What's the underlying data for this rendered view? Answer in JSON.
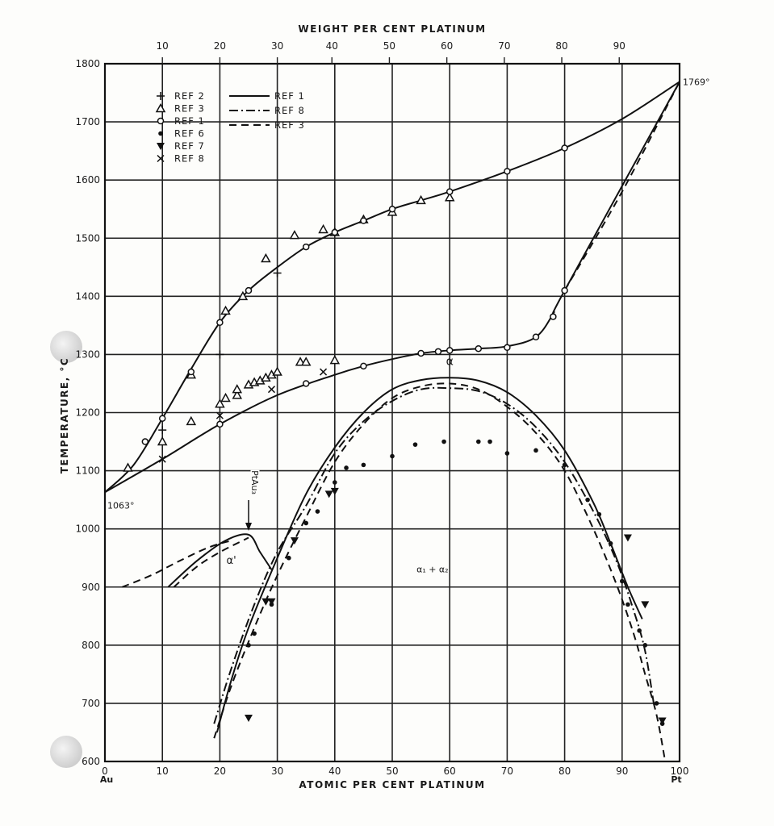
{
  "chart_data": {
    "type": "line",
    "title": "WEIGHT PER CENT PLATINUM",
    "xlabel": "ATOMIC PER CENT PLATINUM",
    "ylabel": "TEMPERATURE, °C",
    "xlim": [
      0,
      100
    ],
    "ylim": [
      600,
      1800
    ],
    "grid": true,
    "legend_position": "top-left",
    "x_ticks": [
      "0",
      "10",
      "20",
      "30",
      "40",
      "50",
      "60",
      "70",
      "80",
      "90",
      "100"
    ],
    "x_end_labels": {
      "left": "Au",
      "right": "Pt"
    },
    "y_ticks": [
      "600",
      "700",
      "800",
      "900",
      "1000",
      "1100",
      "1200",
      "1300",
      "1400",
      "1500",
      "1600",
      "1700",
      "1800"
    ],
    "top_axis": {
      "ticks": [
        "10",
        "20",
        "30",
        "40",
        "50",
        "60",
        "70",
        "80",
        "90"
      ],
      "atomic_positions": [
        10.0,
        20.0,
        30.0,
        39.5,
        49.5,
        59.5,
        69.5,
        79.5,
        89.5
      ]
    },
    "legend": {
      "markers": [
        {
          "symbol": "+",
          "label": "REF 2"
        },
        {
          "symbol": "△",
          "label": "REF 3"
        },
        {
          "symbol": "○",
          "label": "REF 1"
        },
        {
          "symbol": "•",
          "label": "REF 6"
        },
        {
          "symbol": "▼",
          "label": "REF 7"
        },
        {
          "symbol": "×",
          "label": "REF 8"
        }
      ],
      "lines": [
        {
          "style": "solid",
          "label": "REF 1"
        },
        {
          "style": "dash-dot",
          "label": "REF 8"
        },
        {
          "style": "dashed",
          "label": "REF 3"
        }
      ]
    },
    "annotations": [
      {
        "text": "1769°",
        "x": 100,
        "y": 1769
      },
      {
        "text": "1063°",
        "x": 0,
        "y": 1063
      },
      {
        "text": "PtAu₃",
        "x": 25,
        "y": 1080
      },
      {
        "text": "α",
        "x": 60,
        "y": 1282
      },
      {
        "text": "α'",
        "x": 22,
        "y": 940
      },
      {
        "text": "α₁ + α₂",
        "x": 57,
        "y": 925
      }
    ],
    "curves": [
      {
        "name": "liquidus",
        "style": "solid",
        "points": [
          [
            0,
            1063
          ],
          [
            5,
            1110
          ],
          [
            10,
            1190
          ],
          [
            15,
            1275
          ],
          [
            20,
            1355
          ],
          [
            25,
            1410
          ],
          [
            30,
            1450
          ],
          [
            35,
            1485
          ],
          [
            40,
            1510
          ],
          [
            45,
            1530
          ],
          [
            50,
            1550
          ],
          [
            55,
            1565
          ],
          [
            60,
            1580
          ],
          [
            70,
            1615
          ],
          [
            80,
            1655
          ],
          [
            90,
            1705
          ],
          [
            100,
            1769
          ]
        ]
      },
      {
        "name": "solidus",
        "style": "solid",
        "points": [
          [
            0,
            1063
          ],
          [
            10,
            1120
          ],
          [
            20,
            1180
          ],
          [
            30,
            1230
          ],
          [
            40,
            1265
          ],
          [
            45,
            1280
          ],
          [
            50,
            1292
          ],
          [
            55,
            1302
          ],
          [
            60,
            1307
          ],
          [
            65,
            1310
          ],
          [
            70,
            1314
          ],
          [
            75,
            1330
          ],
          [
            78,
            1370
          ],
          [
            80,
            1410
          ],
          [
            100,
            1769
          ]
        ]
      },
      {
        "name": "solidus-high-pt",
        "style": "dashed",
        "points": [
          [
            80,
            1410
          ],
          [
            90,
            1580
          ],
          [
            100,
            1769
          ]
        ]
      },
      {
        "name": "miscibility-gap-ref1",
        "style": "solid",
        "points": [
          [
            19.5,
            650
          ],
          [
            22,
            740
          ],
          [
            25,
            830
          ],
          [
            30,
            950
          ],
          [
            35,
            1060
          ],
          [
            40,
            1140
          ],
          [
            45,
            1200
          ],
          [
            50,
            1240
          ],
          [
            55,
            1256
          ],
          [
            60,
            1260
          ],
          [
            65,
            1255
          ],
          [
            70,
            1235
          ],
          [
            75,
            1195
          ],
          [
            80,
            1135
          ],
          [
            85,
            1045
          ],
          [
            88,
            975
          ],
          [
            91,
            900
          ],
          [
            93.5,
            845
          ]
        ]
      },
      {
        "name": "miscibility-gap-ref8",
        "style": "dash-dot",
        "points": [
          [
            19,
            665
          ],
          [
            22,
            760
          ],
          [
            26,
            870
          ],
          [
            30,
            960
          ],
          [
            35,
            1040
          ],
          [
            40,
            1130
          ],
          [
            45,
            1185
          ],
          [
            50,
            1220
          ],
          [
            55,
            1240
          ],
          [
            60,
            1242
          ],
          [
            65,
            1237
          ],
          [
            70,
            1215
          ],
          [
            75,
            1175
          ],
          [
            80,
            1115
          ],
          [
            85,
            1030
          ],
          [
            89,
            945
          ],
          [
            92,
            860
          ],
          [
            94,
            790
          ],
          [
            95.5,
            700
          ]
        ]
      },
      {
        "name": "miscibility-gap-ref3",
        "style": "dashed",
        "points": [
          [
            19,
            640
          ],
          [
            22,
            730
          ],
          [
            26,
            830
          ],
          [
            30,
            920
          ],
          [
            35,
            1020
          ],
          [
            40,
            1115
          ],
          [
            45,
            1180
          ],
          [
            50,
            1225
          ],
          [
            55,
            1245
          ],
          [
            60,
            1250
          ],
          [
            65,
            1240
          ],
          [
            70,
            1210
          ],
          [
            75,
            1165
          ],
          [
            80,
            1100
          ],
          [
            85,
            1000
          ],
          [
            89,
            905
          ],
          [
            92,
            820
          ],
          [
            94,
            750
          ],
          [
            96,
            680
          ],
          [
            97.5,
            600
          ]
        ]
      },
      {
        "name": "alpha-prime-solid",
        "style": "solid",
        "points": [
          [
            11,
            900
          ],
          [
            16,
            945
          ],
          [
            21,
            980
          ],
          [
            25,
            990
          ],
          [
            27,
            960
          ],
          [
            29,
            930
          ]
        ]
      },
      {
        "name": "alpha-prime-dashed",
        "style": "dashed",
        "points": [
          [
            3,
            900
          ],
          [
            8,
            920
          ],
          [
            13,
            945
          ],
          [
            18,
            968
          ],
          [
            22,
            980
          ]
        ]
      },
      {
        "name": "alpha-prime-dashed-2",
        "style": "dashed",
        "points": [
          [
            12,
            900
          ],
          [
            16,
            935
          ],
          [
            20,
            960
          ],
          [
            24,
            980
          ],
          [
            25,
            985
          ]
        ]
      }
    ],
    "series": [
      {
        "name": "REF 2",
        "marker": "+",
        "points": [
          [
            10,
            1170
          ],
          [
            20,
            1300
          ],
          [
            30,
            1440
          ]
        ]
      },
      {
        "name": "REF 3",
        "marker": "triangle",
        "points": [
          [
            4,
            1105
          ],
          [
            10,
            1150
          ],
          [
            15,
            1185
          ],
          [
            15,
            1265
          ],
          [
            21,
            1375
          ],
          [
            24,
            1400
          ],
          [
            28,
            1465
          ],
          [
            33,
            1505
          ],
          [
            38,
            1515
          ],
          [
            40,
            1510
          ],
          [
            45,
            1532
          ],
          [
            50,
            1545
          ],
          [
            55,
            1565
          ],
          [
            60,
            1570
          ],
          [
            20,
            1215
          ],
          [
            21,
            1225
          ],
          [
            23,
            1230
          ],
          [
            23,
            1240
          ],
          [
            25,
            1248
          ],
          [
            26,
            1252
          ],
          [
            27,
            1255
          ],
          [
            28,
            1260
          ],
          [
            29,
            1265
          ],
          [
            30,
            1270
          ],
          [
            34,
            1287
          ],
          [
            35,
            1287
          ],
          [
            40,
            1290
          ]
        ]
      },
      {
        "name": "REF 1",
        "marker": "circle",
        "points": [
          [
            7,
            1150
          ],
          [
            10,
            1190
          ],
          [
            15,
            1270
          ],
          [
            20,
            1355
          ],
          [
            25,
            1410
          ],
          [
            35,
            1485
          ],
          [
            40,
            1510
          ],
          [
            45,
            1530
          ],
          [
            50,
            1550
          ],
          [
            60,
            1580
          ],
          [
            70,
            1615
          ],
          [
            80,
            1655
          ],
          [
            20,
            1180
          ],
          [
            35,
            1250
          ],
          [
            45,
            1280
          ],
          [
            55,
            1302
          ],
          [
            58,
            1305
          ],
          [
            60,
            1307
          ],
          [
            65,
            1310
          ],
          [
            70,
            1312
          ],
          [
            75,
            1330
          ],
          [
            78,
            1365
          ],
          [
            80,
            1410
          ]
        ]
      },
      {
        "name": "REF 6",
        "marker": "dot",
        "points": [
          [
            25,
            800
          ],
          [
            26,
            820
          ],
          [
            29,
            870
          ],
          [
            32,
            950
          ],
          [
            35,
            1010
          ],
          [
            37,
            1030
          ],
          [
            40,
            1080
          ],
          [
            42,
            1105
          ],
          [
            45,
            1110
          ],
          [
            50,
            1125
          ],
          [
            54,
            1145
          ],
          [
            59,
            1150
          ],
          [
            65,
            1150
          ],
          [
            75,
            1135
          ],
          [
            80,
            1110
          ],
          [
            84,
            1050
          ],
          [
            86,
            1025
          ],
          [
            88,
            975
          ],
          [
            90,
            910
          ],
          [
            91,
            870
          ],
          [
            93,
            825
          ],
          [
            94,
            800
          ],
          [
            96,
            700
          ],
          [
            97,
            665
          ],
          [
            67,
            1150
          ],
          [
            70,
            1130
          ]
        ]
      },
      {
        "name": "REF 7",
        "marker": "triangle-down",
        "points": [
          [
            25,
            675
          ],
          [
            28,
            875
          ],
          [
            29,
            875
          ],
          [
            33,
            980
          ],
          [
            39,
            1060
          ],
          [
            40,
            1065
          ],
          [
            91,
            985
          ],
          [
            94,
            870
          ],
          [
            97,
            670
          ]
        ]
      },
      {
        "name": "REF 8",
        "marker": "x",
        "points": [
          [
            10,
            1120
          ],
          [
            20,
            1195
          ],
          [
            29,
            1240
          ],
          [
            38,
            1270
          ]
        ]
      }
    ]
  }
}
